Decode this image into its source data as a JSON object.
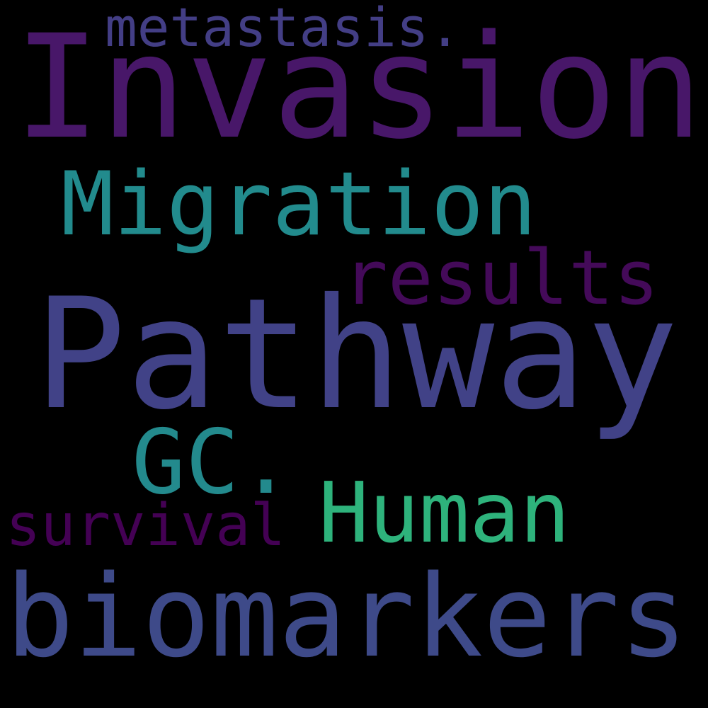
{
  "words": [
    {
      "text": "metastasis.",
      "color": "#433e85"
    },
    {
      "text": "Invasion",
      "color": "#481769"
    },
    {
      "text": "Migration",
      "color": "#228b8d"
    },
    {
      "text": "results",
      "color": "#440a59"
    },
    {
      "text": "Pathway",
      "color": "#414287"
    },
    {
      "text": "GC.",
      "color": "#238a8d"
    },
    {
      "text": "Human",
      "color": "#2eb37c"
    },
    {
      "text": "survival",
      "color": "#440154"
    },
    {
      "text": "biomarkers",
      "color": "#3e4a89"
    }
  ]
}
